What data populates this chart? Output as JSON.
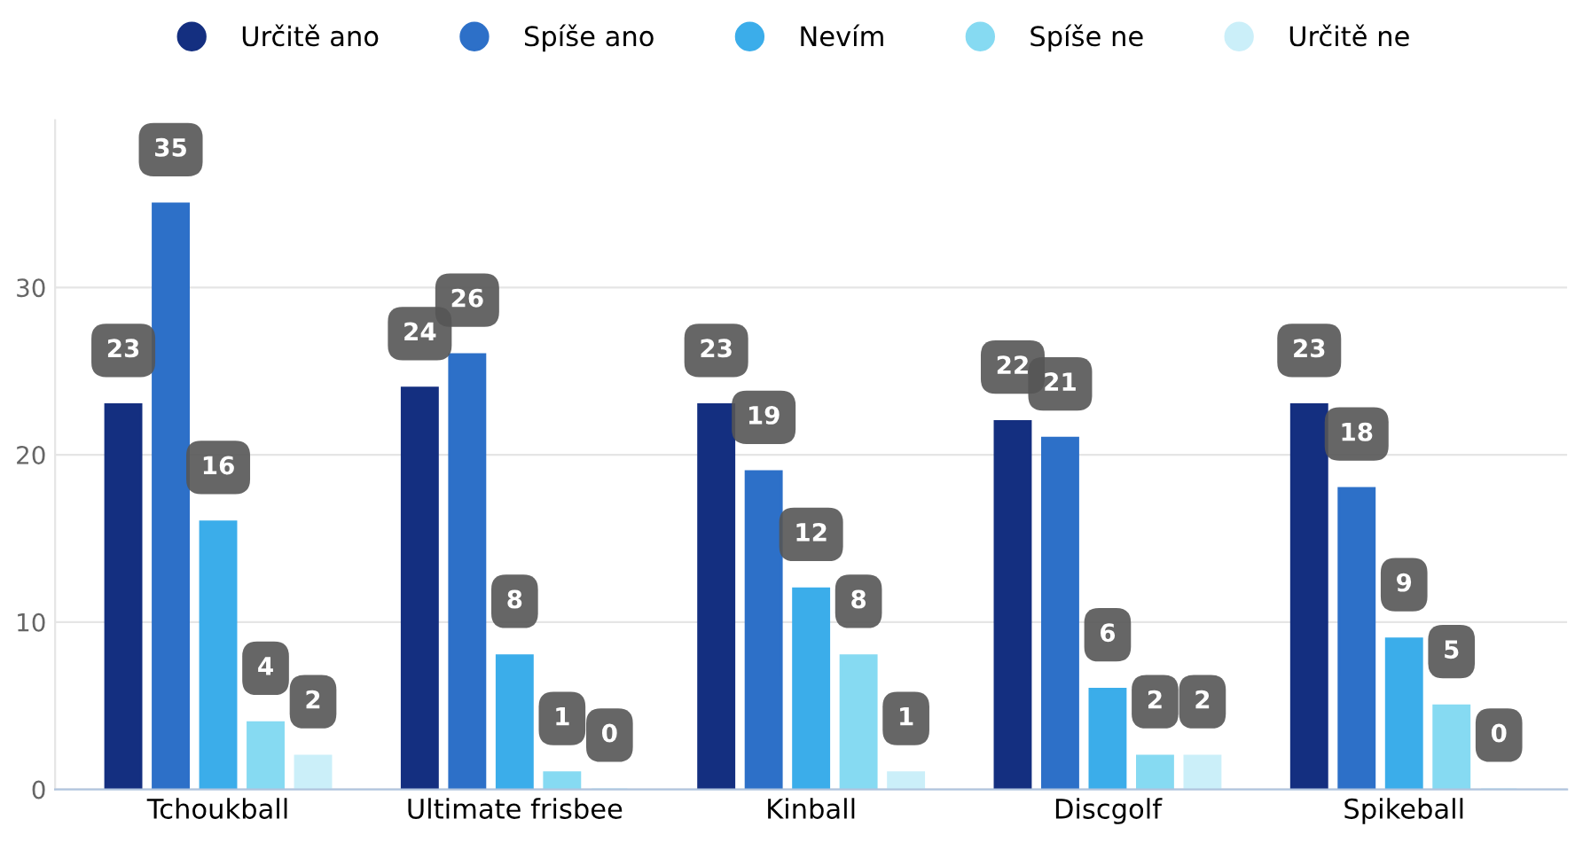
{
  "chart_data": {
    "type": "bar",
    "categories": [
      "Tchoukball",
      "Ultimate frisbee",
      "Kinball",
      "Discgolf",
      "Spikeball"
    ],
    "series": [
      {
        "name": "Určitě ano",
        "color": "#142f80",
        "values": [
          23,
          24,
          23,
          22,
          23
        ]
      },
      {
        "name": "Spíše ano",
        "color": "#2d70c8",
        "values": [
          35,
          26,
          19,
          21,
          18
        ]
      },
      {
        "name": "Nevím",
        "color": "#3badea",
        "values": [
          16,
          8,
          12,
          6,
          9
        ]
      },
      {
        "name": "Spíše ne",
        "color": "#86daf2",
        "values": [
          4,
          1,
          8,
          2,
          5
        ]
      },
      {
        "name": "Určitě ne",
        "color": "#cbeff9",
        "values": [
          2,
          0,
          1,
          2,
          0
        ]
      }
    ],
    "ylim": [
      0,
      40
    ],
    "yticks": [
      0,
      10,
      20,
      30
    ],
    "grid": "y",
    "legend": "top",
    "data_labels": true
  }
}
